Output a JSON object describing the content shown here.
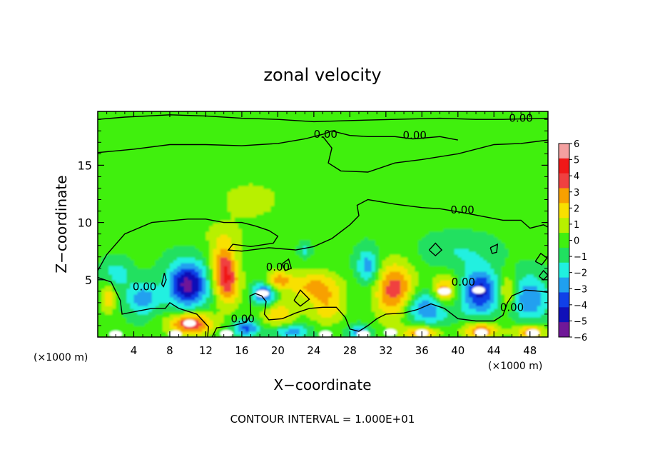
{
  "chart_data": {
    "type": "heatmap",
    "title": "zonal velocity",
    "xlabel": "X−coordinate",
    "ylabel": "Z−coordinate",
    "x_units_left": "(×1000 m)",
    "x_units_right": "(×1000 m)",
    "xlim": [
      0,
      50
    ],
    "ylim": [
      0,
      19.7
    ],
    "x_ticks": [
      4,
      8,
      12,
      16,
      20,
      24,
      28,
      32,
      36,
      40,
      44,
      48
    ],
    "x_tick_labels": [
      "4",
      "8",
      "12",
      "16",
      "20",
      "24",
      "28",
      "32",
      "36",
      "40",
      "44",
      "48"
    ],
    "y_ticks": [
      5,
      10,
      15
    ],
    "y_tick_labels": [
      "5",
      "10",
      "15"
    ],
    "colorbar": {
      "range": [
        -6,
        6
      ],
      "tick_values": [
        6,
        5,
        4,
        3,
        2,
        1,
        0,
        -1,
        -2,
        -3,
        -4,
        -5,
        -6
      ],
      "tick_labels": [
        "6",
        "5",
        "4",
        "3",
        "2",
        "1",
        "0",
        "−1",
        "−2",
        "−3",
        "−4",
        "−5",
        "−6"
      ],
      "colors": [
        "#f4a0a0",
        "#f01818",
        "#f04040",
        "#f8a000",
        "#f8e000",
        "#b8f000",
        "#40f010",
        "#20e060",
        "#20f0e0",
        "#20a0f0",
        "#1040e8",
        "#1010b8",
        "#701898"
      ]
    },
    "contour_label": "0.00",
    "contour_interval_text": "CONTOUR INTERVAL = 1.000E+01",
    "background_value": 0.2,
    "features": [
      {
        "x": 10,
        "z": 4.6,
        "u": -5.6,
        "rx": 2.2,
        "rz": 2.0
      },
      {
        "x": 5,
        "z": 3.4,
        "u": -2.8,
        "rx": 1.8,
        "rz": 1.5
      },
      {
        "x": 2,
        "z": 5.5,
        "u": -2.0,
        "rx": 1.5,
        "rz": 1.2
      },
      {
        "x": 1.2,
        "z": 3.5,
        "u": 2.5,
        "rx": 0.8,
        "rz": 1.5
      },
      {
        "x": 10.3,
        "z": 1.2,
        "u": 5.0,
        "rx": 2.5,
        "rz": 1.0
      },
      {
        "x": 14,
        "z": 6.2,
        "u": 3.6,
        "rx": 1.4,
        "rz": 2.2
      },
      {
        "x": 14.5,
        "z": 4.5,
        "u": 2.8,
        "rx": 1.5,
        "rz": 2.0
      },
      {
        "x": 18.5,
        "z": 3.8,
        "u": -4.5,
        "rx": 1.2,
        "rz": 1.0
      },
      {
        "x": 20,
        "z": 5.0,
        "u": 3.2,
        "rx": 1.5,
        "rz": 0.8
      },
      {
        "x": 24,
        "z": 4.5,
        "u": 3.0,
        "rx": 3.0,
        "rz": 1.3
      },
      {
        "x": 20,
        "z": 2.0,
        "u": 2.6,
        "rx": 2.0,
        "rz": 1.2
      },
      {
        "x": 25.5,
        "z": 2.6,
        "u": 2.4,
        "rx": 2.0,
        "rz": 1.5
      },
      {
        "x": 23,
        "z": 7.6,
        "u": -1.6,
        "rx": 0.6,
        "rz": 0.6
      },
      {
        "x": 30,
        "z": 6.2,
        "u": -3.0,
        "rx": 1.2,
        "rz": 1.5
      },
      {
        "x": 33,
        "z": 4.0,
        "u": 4.6,
        "rx": 2.2,
        "rz": 2.5
      },
      {
        "x": 36.5,
        "z": 2.6,
        "u": -3.6,
        "rx": 2.8,
        "rz": 1.4
      },
      {
        "x": 38.5,
        "z": 4.0,
        "u": 3.8,
        "rx": 1.4,
        "rz": 1.4
      },
      {
        "x": 42.5,
        "z": 4.0,
        "u": -4.6,
        "rx": 2.0,
        "rz": 2.0
      },
      {
        "x": 45.5,
        "z": 4.0,
        "u": 2.8,
        "rx": 1.0,
        "rz": 1.5
      },
      {
        "x": 48,
        "z": 3.4,
        "u": -3.2,
        "rx": 2.0,
        "rz": 2.0
      },
      {
        "x": 16.5,
        "z": 0.8,
        "u": -3.6,
        "rx": 1.5,
        "rz": 0.7
      },
      {
        "x": 21.5,
        "z": 0.5,
        "u": -3.0,
        "rx": 2.0,
        "rz": 0.6
      },
      {
        "x": 29,
        "z": 0.5,
        "u": -3.0,
        "rx": 1.2,
        "rz": 0.6
      },
      {
        "x": 36,
        "z": 0.4,
        "u": 3.6,
        "rx": 2.0,
        "rz": 0.6
      },
      {
        "x": 42.5,
        "z": 0.6,
        "u": 4.0,
        "rx": 2.0,
        "rz": 0.8
      },
      {
        "x": 48,
        "z": 0.5,
        "u": 3.6,
        "rx": 1.8,
        "rz": 0.7
      },
      {
        "x": 17,
        "z": 12,
        "u": 1.8,
        "rx": 3.0,
        "rz": 1.5
      },
      {
        "x": 40,
        "z": 7.5,
        "u": -1.2,
        "rx": 4.0,
        "rz": 1.5
      },
      {
        "x": 40,
        "z": 15,
        "u": 0.8,
        "rx": 8.0,
        "rz": 3.0
      },
      {
        "x": 14,
        "z": 9,
        "u": 1.0,
        "rx": 3.0,
        "rz": 1.5
      }
    ],
    "extreme_spots": [
      {
        "x": 10.2,
        "z": 1.2,
        "kind": "white"
      },
      {
        "x": 18.3,
        "z": 3.8,
        "kind": "white"
      },
      {
        "x": 38.5,
        "z": 4.0,
        "kind": "white"
      },
      {
        "x": 42.3,
        "z": 4.1,
        "kind": "white"
      },
      {
        "x": 10.0,
        "z": 4.6,
        "kind": "purple"
      },
      {
        "x": 2.0,
        "z": 0.25,
        "kind": "white"
      },
      {
        "x": 8.6,
        "z": 0.25,
        "kind": "white"
      },
      {
        "x": 14.3,
        "z": 0.3,
        "kind": "white"
      },
      {
        "x": 25.3,
        "z": 0.25,
        "kind": "white"
      },
      {
        "x": 29.5,
        "z": 0.25,
        "kind": "white"
      },
      {
        "x": 32.5,
        "z": 0.4,
        "kind": "white"
      },
      {
        "x": 36.0,
        "z": 0.35,
        "kind": "white"
      },
      {
        "x": 42.6,
        "z": 0.4,
        "kind": "white"
      },
      {
        "x": 48.3,
        "z": 0.35,
        "kind": "white"
      }
    ],
    "contours": [
      [
        [
          0,
          19.0
        ],
        [
          3,
          19.2
        ],
        [
          8,
          19.4
        ],
        [
          12,
          19.3
        ],
        [
          16,
          19.1
        ],
        [
          20,
          19.0
        ],
        [
          24,
          18.8
        ],
        [
          28,
          18.9
        ],
        [
          33,
          19.0
        ],
        [
          38,
          19.1
        ],
        [
          42,
          19.0
        ],
        [
          45,
          19.0
        ],
        [
          50,
          19.1
        ]
      ],
      [
        [
          0,
          16.1
        ],
        [
          4,
          16.4
        ],
        [
          8,
          16.8
        ],
        [
          12,
          16.8
        ],
        [
          16,
          16.7
        ],
        [
          20,
          16.9
        ],
        [
          23,
          17.3
        ],
        [
          25,
          17.7
        ],
        [
          26,
          18.0
        ],
        [
          28,
          17.6
        ],
        [
          30,
          17.5
        ],
        [
          33,
          17.5
        ],
        [
          35,
          17.3
        ],
        [
          38,
          17.5
        ],
        [
          40,
          17.2
        ]
      ],
      [
        [
          25,
          17.5
        ],
        [
          26,
          16.5
        ],
        [
          25.6,
          15.2
        ],
        [
          27,
          14.5
        ],
        [
          30,
          14.4
        ],
        [
          33,
          15.2
        ],
        [
          36,
          15.5
        ],
        [
          40,
          16.0
        ],
        [
          44,
          16.8
        ],
        [
          47,
          16.9
        ],
        [
          50,
          17.2
        ]
      ],
      [
        [
          0,
          5.8
        ],
        [
          1,
          7.2
        ],
        [
          3,
          9.0
        ],
        [
          6,
          10.0
        ],
        [
          10,
          10.3
        ],
        [
          12,
          10.3
        ],
        [
          14,
          10.0
        ],
        [
          16,
          10.0
        ],
        [
          17.5,
          9.7
        ],
        [
          19,
          9.3
        ],
        [
          20,
          8.8
        ],
        [
          19.5,
          8.2
        ],
        [
          17,
          7.9
        ],
        [
          15,
          8.1
        ],
        [
          14.5,
          7.6
        ],
        [
          16,
          7.5
        ],
        [
          19,
          7.8
        ],
        [
          22,
          7.6
        ],
        [
          24,
          7.9
        ],
        [
          26,
          8.6
        ],
        [
          28,
          9.8
        ],
        [
          29,
          10.6
        ],
        [
          28.8,
          11.5
        ],
        [
          30,
          12.0
        ],
        [
          33,
          11.6
        ],
        [
          36,
          11.3
        ],
        [
          38,
          11.2
        ],
        [
          41,
          10.8
        ],
        [
          45,
          10.2
        ],
        [
          47,
          10.2
        ],
        [
          48,
          9.5
        ],
        [
          49.5,
          9.8
        ],
        [
          50,
          9.6
        ]
      ],
      [
        [
          0,
          5.2
        ],
        [
          1.5,
          4.8
        ],
        [
          2.5,
          3.2
        ],
        [
          2.7,
          2.0
        ],
        [
          4,
          2.2
        ],
        [
          6,
          2.5
        ],
        [
          7.5,
          2.5
        ],
        [
          8,
          3.0
        ],
        [
          9,
          2.5
        ],
        [
          11,
          2.0
        ],
        [
          12.3,
          0.9
        ],
        [
          12.2,
          0.0
        ]
      ],
      [
        [
          12.7,
          0.0
        ],
        [
          13.2,
          0.8
        ],
        [
          15,
          1.0
        ],
        [
          16.5,
          1.3
        ],
        [
          17,
          2.0
        ],
        [
          16.9,
          3.6
        ],
        [
          17.5,
          3.8
        ],
        [
          18.2,
          3.6
        ],
        [
          18.7,
          3.1
        ],
        [
          18.5,
          2.0
        ],
        [
          19,
          1.5
        ],
        [
          20.5,
          1.6
        ],
        [
          22,
          2.1
        ],
        [
          23.5,
          2.5
        ],
        [
          25,
          2.6
        ],
        [
          26.5,
          2.6
        ],
        [
          27.5,
          1.7
        ],
        [
          28,
          0.7
        ],
        [
          29,
          0.5
        ],
        [
          30,
          1.0
        ],
        [
          31,
          1.6
        ],
        [
          32,
          2.0
        ],
        [
          34,
          2.1
        ],
        [
          35.5,
          2.4
        ],
        [
          37,
          2.9
        ],
        [
          38.5,
          2.5
        ],
        [
          40,
          1.6
        ],
        [
          42,
          1.4
        ],
        [
          44,
          1.4
        ],
        [
          45,
          1.9
        ],
        [
          45.5,
          3.0
        ],
        [
          46,
          3.6
        ],
        [
          47.5,
          4.1
        ],
        [
          49,
          4.0
        ],
        [
          50,
          3.9
        ]
      ],
      [
        [
          7.1,
          4.6
        ],
        [
          7.4,
          5.6
        ],
        [
          7.6,
          5.0
        ],
        [
          7.3,
          4.4
        ],
        [
          7.1,
          4.6
        ]
      ],
      [
        [
          20.5,
          6.4
        ],
        [
          21.2,
          6.8
        ],
        [
          21.5,
          6.0
        ],
        [
          20.8,
          5.8
        ],
        [
          20.5,
          6.4
        ]
      ],
      [
        [
          21.8,
          3.2
        ],
        [
          22.5,
          4.1
        ],
        [
          23.5,
          3.3
        ],
        [
          22.5,
          2.7
        ],
        [
          21.8,
          3.2
        ]
      ],
      [
        [
          36.8,
          7.6
        ],
        [
          37.5,
          8.2
        ],
        [
          38.2,
          7.6
        ],
        [
          37.5,
          7.1
        ],
        [
          36.8,
          7.6
        ]
      ],
      [
        [
          43.6,
          7.8
        ],
        [
          44.4,
          8.1
        ],
        [
          44.3,
          7.4
        ],
        [
          43.8,
          7.3
        ],
        [
          43.6,
          7.8
        ]
      ],
      [
        [
          48.6,
          6.6
        ],
        [
          49.2,
          7.3
        ],
        [
          49.9,
          6.9
        ],
        [
          49.3,
          6.3
        ],
        [
          48.6,
          6.6
        ]
      ],
      [
        [
          49.0,
          5.3
        ],
        [
          49.5,
          5.8
        ],
        [
          50.0,
          5.4
        ],
        [
          49.5,
          5.0
        ],
        [
          49.0,
          5.3
        ]
      ]
    ],
    "contour_label_points": [
      [
        47,
        19.1
      ],
      [
        25.3,
        17.7
      ],
      [
        35.2,
        17.6
      ],
      [
        40.5,
        11.1
      ],
      [
        20,
        6.1
      ],
      [
        5.2,
        4.4
      ],
      [
        16.1,
        1.6
      ],
      [
        40.6,
        4.8
      ],
      [
        46,
        2.6
      ]
    ]
  }
}
